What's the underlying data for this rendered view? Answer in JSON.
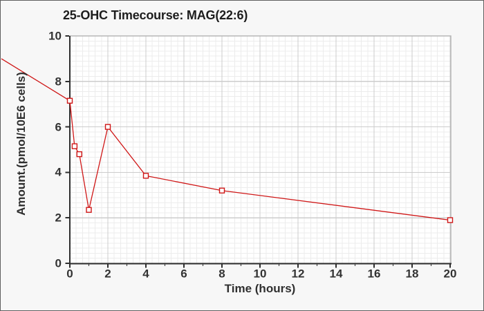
{
  "window": {
    "background_color": "#f7f7f7",
    "frame_color": "#5e5e5e"
  },
  "chart_data": {
    "type": "line",
    "title": "25-OHC Timecourse: MAG(22:6)",
    "xlabel": "Time (hours)",
    "ylabel": "Amount.(pmol/10E6 cells)",
    "x": [
      0,
      0.25,
      0.5,
      1,
      2,
      4,
      8,
      20
    ],
    "values": [
      7.15,
      5.15,
      4.8,
      2.35,
      6.0,
      3.85,
      3.2,
      1.9
    ],
    "offscreen_lead_point": {
      "x": -3.6,
      "value": 9.0
    },
    "xlim": [
      0,
      20
    ],
    "ylim": [
      0,
      10
    ],
    "x_ticks": [
      0,
      2,
      4,
      6,
      8,
      10,
      12,
      14,
      16,
      18,
      20
    ],
    "x_minor_ticks": [
      1,
      3,
      5,
      7,
      9,
      11,
      13,
      15,
      17,
      19
    ],
    "y_ticks": [
      0,
      2,
      4,
      6,
      8,
      10
    ],
    "legend": "none",
    "marker": "open-square",
    "series_color": "#cf1616",
    "plot_bg": "#ffffff",
    "plot_border_color": "#b6b6b6",
    "axis_color": "#2e2e2e",
    "grid": {
      "major_color": "#cccccc",
      "minor_color": "#ececec",
      "minor_per_major_x": 6,
      "minor_per_major_y": 9
    }
  }
}
